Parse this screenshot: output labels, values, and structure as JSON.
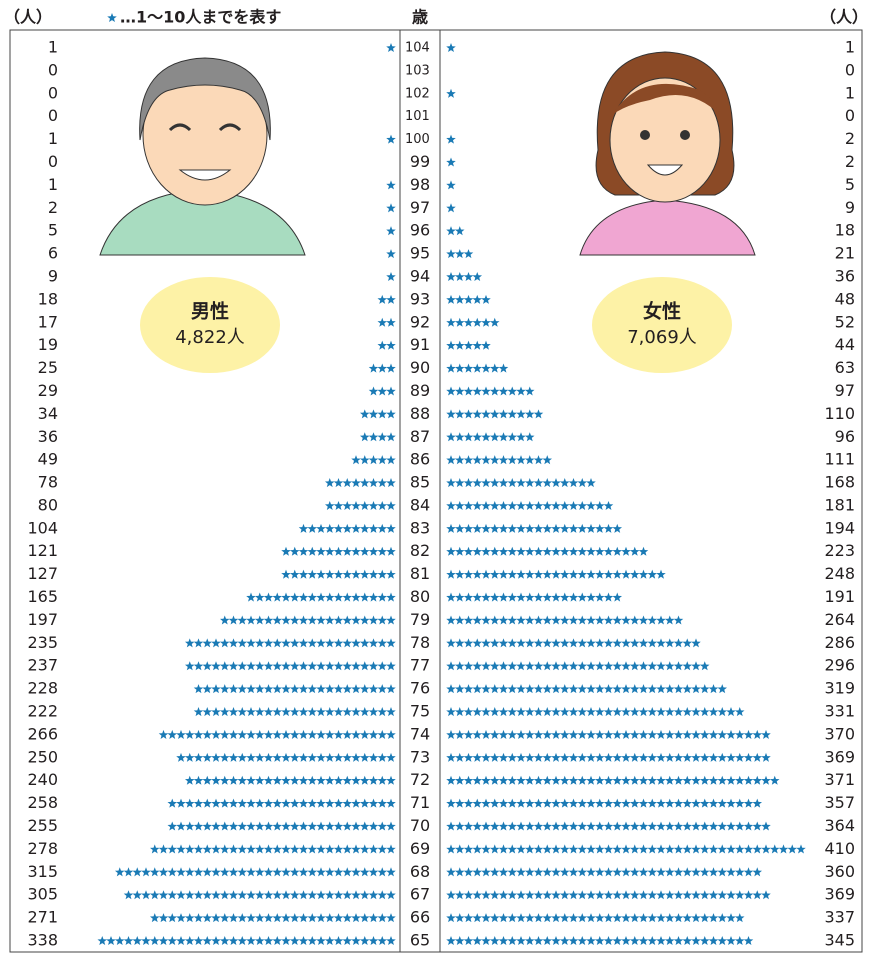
{
  "chart_data": {
    "type": "pictogram-pyramid",
    "left_unit": "（人）",
    "right_unit": "（人）",
    "legend_note": "…1～10人までを表す",
    "age_header": "歳",
    "categories": [
      "104",
      "103",
      "102",
      "101",
      "100",
      "99",
      "98",
      "97",
      "96",
      "95",
      "94",
      "93",
      "92",
      "91",
      "90",
      "89",
      "88",
      "87",
      "86",
      "85",
      "84",
      "83",
      "82",
      "81",
      "80",
      "79",
      "78",
      "77",
      "76",
      "75",
      "74",
      "73",
      "72",
      "71",
      "70",
      "69",
      "68",
      "67",
      "66",
      "65"
    ],
    "series": [
      {
        "name": "男性",
        "total_label": "4,822人",
        "color": "#1a7ab5",
        "values": [
          1,
          0,
          0,
          0,
          1,
          0,
          1,
          2,
          5,
          6,
          9,
          18,
          17,
          19,
          25,
          29,
          34,
          36,
          49,
          78,
          80,
          104,
          121,
          127,
          165,
          197,
          235,
          237,
          228,
          222,
          266,
          250,
          240,
          258,
          255,
          278,
          315,
          305,
          271,
          338
        ]
      },
      {
        "name": "女性",
        "total_label": "7,069人",
        "color": "#1a7ab5",
        "values": [
          1,
          0,
          1,
          0,
          2,
          2,
          5,
          9,
          18,
          21,
          36,
          48,
          52,
          44,
          63,
          97,
          110,
          96,
          111,
          168,
          181,
          194,
          223,
          248,
          191,
          264,
          286,
          296,
          319,
          331,
          370,
          369,
          371,
          357,
          364,
          410,
          360,
          369,
          337,
          345
        ]
      }
    ]
  }
}
